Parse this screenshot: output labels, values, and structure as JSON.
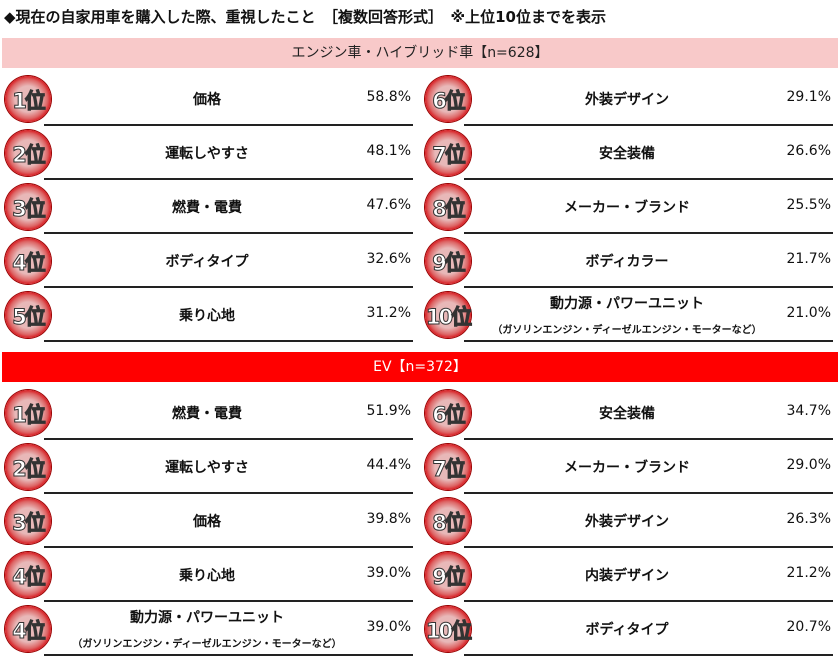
{
  "title": "◆現在の自家用車を購入した際、重視したこと　［複数回答形式］　※上位10位までを表示",
  "colors": {
    "engine_header": "#f8c9c9",
    "ev_header": "#ff0000",
    "badge": "#d8141a"
  },
  "sections": [
    {
      "header": "エンジン車・ハイブリッド車【n=628】",
      "items": [
        {
          "rank": "1位",
          "label": "価格",
          "pct": "58.8%"
        },
        {
          "rank": "2位",
          "label": "運転しやすさ",
          "pct": "48.1%"
        },
        {
          "rank": "3位",
          "label": "燃費・電費",
          "pct": "47.6%"
        },
        {
          "rank": "4位",
          "label": "ボディタイプ",
          "pct": "32.6%"
        },
        {
          "rank": "5位",
          "label": "乗り心地",
          "pct": "31.2%"
        },
        {
          "rank": "6位",
          "label": "外装デザイン",
          "pct": "29.1%"
        },
        {
          "rank": "7位",
          "label": "安全装備",
          "pct": "26.6%"
        },
        {
          "rank": "8位",
          "label": "メーカー・ブランド",
          "pct": "25.5%"
        },
        {
          "rank": "9位",
          "label": "ボディカラー",
          "pct": "21.7%"
        },
        {
          "rank": "10位",
          "label": "動力源・パワーユニット",
          "sub": "（ガソリンエンジン・ディーゼルエンジン・モーターなど）",
          "pct": "21.0%"
        }
      ]
    },
    {
      "header": "EV【n=372】",
      "items": [
        {
          "rank": "1位",
          "label": "燃費・電費",
          "pct": "51.9%"
        },
        {
          "rank": "2位",
          "label": "運転しやすさ",
          "pct": "44.4%"
        },
        {
          "rank": "3位",
          "label": "価格",
          "pct": "39.8%"
        },
        {
          "rank": "4位",
          "label": "乗り心地",
          "pct": "39.0%"
        },
        {
          "rank": "4位",
          "label": "動力源・パワーユニット",
          "sub": "（ガソリンエンジン・ディーゼルエンジン・モーターなど）",
          "pct": "39.0%"
        },
        {
          "rank": "6位",
          "label": "安全装備",
          "pct": "34.7%"
        },
        {
          "rank": "7位",
          "label": "メーカー・ブランド",
          "pct": "29.0%"
        },
        {
          "rank": "8位",
          "label": "外装デザイン",
          "pct": "26.3%"
        },
        {
          "rank": "9位",
          "label": "内装デザイン",
          "pct": "21.2%"
        },
        {
          "rank": "10位",
          "label": "ボディタイプ",
          "pct": "20.7%"
        }
      ]
    }
  ]
}
